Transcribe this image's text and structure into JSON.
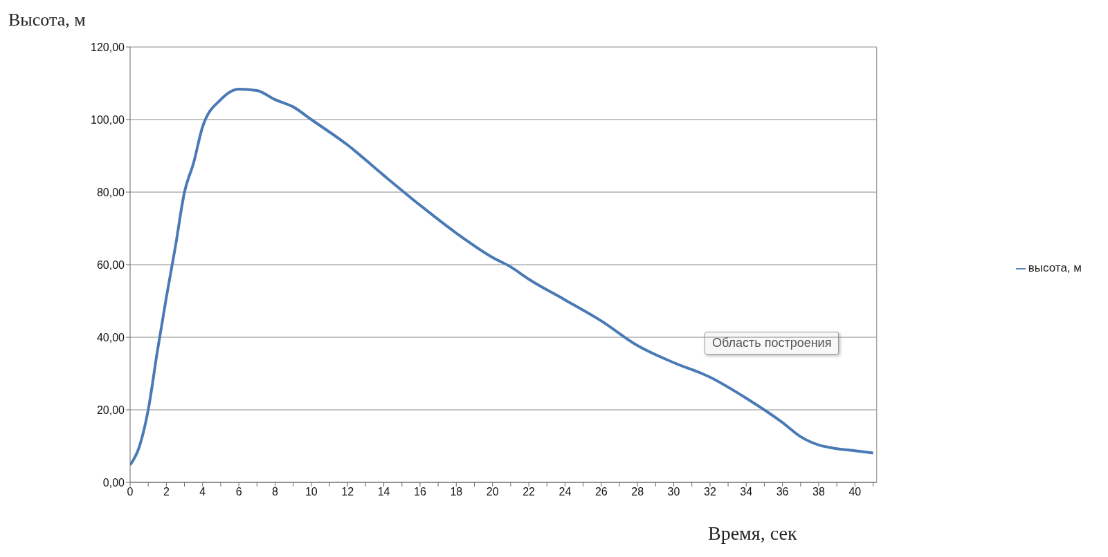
{
  "chart_data": {
    "type": "line",
    "ylabel": "Высота, м",
    "xlabel": "Время, сек",
    "x": [
      0,
      0.5,
      1,
      1.5,
      2,
      2.5,
      3,
      3.5,
      4,
      5,
      6,
      7,
      8,
      9,
      10,
      12,
      14,
      16,
      18,
      20,
      21,
      22,
      24,
      26,
      28,
      30,
      32,
      34,
      36,
      37,
      38,
      39,
      40,
      41
    ],
    "series": [
      {
        "name": "высота, м",
        "color": "#4a7ab5",
        "values": [
          4.8,
          9.7,
          20,
          36,
          51,
          65,
          80,
          88,
          98,
          105.5,
          108.4,
          108,
          105.5,
          103.5,
          100,
          93,
          84.6,
          76.4,
          68.7,
          62,
          59.4,
          56,
          50.3,
          44.5,
          37.7,
          33,
          29,
          23.2,
          16.5,
          12.6,
          10.3,
          9.3,
          8.7,
          8.1
        ]
      }
    ],
    "xlim": [
      0,
      41.2
    ],
    "xticks": [
      0,
      {
        "value": 1,
        "label": null
      },
      2,
      {
        "value": 3,
        "label": null
      },
      4,
      {
        "value": 5,
        "label": null
      },
      6,
      {
        "value": 7,
        "label": null
      },
      8,
      {
        "value": 9,
        "label": null
      },
      10,
      {
        "value": 11,
        "label": null
      },
      12,
      {
        "value": 13,
        "label": null
      },
      14,
      {
        "value": 15,
        "label": null
      },
      16,
      {
        "value": 17,
        "label": null
      },
      18,
      {
        "value": 19,
        "label": null
      },
      20,
      {
        "value": 21,
        "label": null
      },
      22,
      {
        "value": 23,
        "label": null
      },
      24,
      {
        "value": 25,
        "label": null
      },
      26,
      {
        "value": 27,
        "label": null
      },
      28,
      {
        "value": 29,
        "label": null
      },
      30,
      {
        "value": 31,
        "label": null
      },
      32,
      {
        "value": 33,
        "label": null
      },
      34,
      {
        "value": 35,
        "label": null
      },
      36,
      {
        "value": 37,
        "label": null
      },
      38,
      {
        "value": 39,
        "label": null
      },
      40,
      {
        "value": 41,
        "label": null
      }
    ],
    "ylim": [
      0,
      120
    ],
    "yticks": [
      {
        "value": 0,
        "label": "0,00"
      },
      {
        "value": 20,
        "label": "20,00"
      },
      {
        "value": 40,
        "label": "40,00"
      },
      {
        "value": 60,
        "label": "60,00"
      },
      {
        "value": 80,
        "label": "80,00"
      },
      {
        "value": 100,
        "label": "100,00"
      },
      {
        "value": 120,
        "label": "120,00"
      }
    ],
    "grid": "y",
    "legend": "right",
    "marker": "none",
    "line_style": "solid",
    "annotations": [
      "Область построения"
    ]
  }
}
